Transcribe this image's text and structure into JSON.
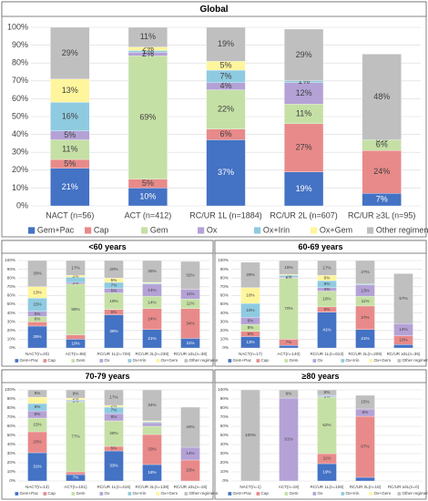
{
  "chart_data": [
    {
      "type": "bar",
      "stacked": true,
      "title": "Global",
      "categories": [
        "NACT (n=56)",
        "ACT (n=412)",
        "RC/UR 1L (n=1884)",
        "RC/UR 2L (n=607)",
        "RC/UR ≥3L (n=95)"
      ],
      "series": [
        {
          "name": "Gem+Pac",
          "color": "#4472c4",
          "values": [
            21,
            10,
            37,
            19,
            7
          ],
          "value_labels": [
            "21%",
            "10%",
            "37%",
            "19%",
            "7%"
          ]
        },
        {
          "name": "Cap",
          "color": "#e88a8a",
          "values": [
            5,
            5,
            6,
            27,
            24
          ],
          "value_labels": [
            "5%",
            "5%",
            "6%",
            "27%",
            "24%"
          ]
        },
        {
          "name": "Gem",
          "color": "#c5e0a5",
          "values": [
            11,
            69,
            22,
            11,
            6
          ],
          "value_labels": [
            "11%",
            "69%",
            "22%",
            "11%",
            "6%"
          ]
        },
        {
          "name": "Ox",
          "color": "#b4a2d6",
          "values": [
            5,
            2,
            4,
            12,
            0
          ],
          "value_labels": [
            "5%",
            "2%",
            "4%",
            "12%",
            "0%"
          ]
        },
        {
          "name": "Ox+Irin",
          "color": "#8fcbe0",
          "values": [
            16,
            1,
            7,
            1,
            0
          ],
          "value_labels": [
            "16%",
            "1%",
            "7%",
            "1%",
            null
          ]
        },
        {
          "name": "Ox+Gem",
          "color": "#fff59d",
          "values": [
            13,
            2,
            5,
            0,
            0
          ],
          "value_labels": [
            "13%",
            "2%",
            "5%",
            null,
            null
          ]
        },
        {
          "name": "Other regimens",
          "color": "#bfbfbf",
          "values": [
            29,
            11,
            19,
            29,
            48
          ],
          "value_labels": [
            "29%",
            "11%",
            "19%",
            "29%",
            "48%"
          ]
        }
      ],
      "ylim": [
        0,
        100
      ],
      "yticks": [
        {
          "value": 0,
          "label": "0%"
        },
        {
          "value": 10,
          "label": "10%"
        },
        {
          "value": 20,
          "label": "20%"
        },
        {
          "value": 30,
          "label": "30%"
        },
        {
          "value": 40,
          "label": "40%"
        },
        {
          "value": 50,
          "label": "50%"
        },
        {
          "value": 60,
          "label": "60%"
        },
        {
          "value": 70,
          "label": "70%"
        },
        {
          "value": 80,
          "label": "80%"
        },
        {
          "value": 90,
          "label": "90%"
        },
        {
          "value": 100,
          "label": "100%"
        }
      ],
      "grid": true,
      "legend": "bottom"
    },
    {
      "type": "bar",
      "stacked": true,
      "title": "<60 years",
      "categories": [
        "NACT(n=20)",
        "ACT(n=98)",
        "RC/UR 1L(n=726)",
        "RC/UR 2L(n=238)",
        "RC/UR ≥3L(n=38)"
      ],
      "series": [
        {
          "name": "Gem+Pac",
          "color": "#4472c4",
          "values": [
            25,
            10,
            38,
            21,
            11
          ],
          "value_labels": [
            "25%",
            "10%",
            "38%",
            "21%",
            "11%"
          ]
        },
        {
          "name": "Cap",
          "color": "#e88a8a",
          "values": [
            5,
            5,
            6,
            24,
            34
          ],
          "value_labels": [
            null,
            null,
            "6%",
            "24%",
            "34%"
          ]
        },
        {
          "name": "Gem",
          "color": "#c5e0a5",
          "values": [
            6,
            58,
            19,
            14,
            11
          ],
          "value_labels": [
            "6%",
            "58%",
            "19%",
            "14%",
            "11%"
          ]
        },
        {
          "name": "Ox",
          "color": "#b4a2d6",
          "values": [
            6,
            2,
            5,
            14,
            11
          ],
          "value_labels": [
            "6%",
            "2%",
            "5%",
            "14%",
            "11%"
          ]
        },
        {
          "name": "Ox+Irin",
          "color": "#8fcbe0",
          "values": [
            15,
            6,
            7,
            1,
            0
          ],
          "value_labels": [
            "15%",
            null,
            "7%",
            null,
            null
          ]
        },
        {
          "name": "Ox+Gem",
          "color": "#fff59d",
          "values": [
            13,
            2,
            5,
            1,
            0
          ],
          "value_labels": [
            "13%",
            "2%",
            "5%",
            null,
            null
          ]
        },
        {
          "name": "Other regimens",
          "color": "#bfbfbf",
          "values": [
            30,
            17,
            20,
            25,
            32
          ],
          "value_labels": [
            "30%",
            "17%",
            "20%",
            "25%",
            "32%"
          ]
        }
      ],
      "ylim": [
        0,
        100
      ],
      "yticks": [
        {
          "value": 0,
          "label": "0%"
        },
        {
          "value": 10,
          "label": "10%"
        },
        {
          "value": 20,
          "label": "20%"
        },
        {
          "value": 30,
          "label": "30%"
        },
        {
          "value": 40,
          "label": "40%"
        },
        {
          "value": 50,
          "label": "50%"
        },
        {
          "value": 60,
          "label": "60%"
        },
        {
          "value": 70,
          "label": "70%"
        },
        {
          "value": 80,
          "label": "80%"
        },
        {
          "value": 90,
          "label": "90%"
        },
        {
          "value": 100,
          "label": "100%"
        }
      ],
      "grid": true,
      "legend": "bottom"
    },
    {
      "type": "bar",
      "stacked": true,
      "title": "60-69 years",
      "categories": [
        "NACT(n=17)",
        "ACT(n=140)",
        "RC/UR 1L(n=613)",
        "RC/UR 2L(n=209)",
        "RC/UR ≥3L(n=35)"
      ],
      "series": [
        {
          "name": "Gem+Pac",
          "color": "#4472c4",
          "values": [
            13,
            3,
            41,
            21,
            4
          ],
          "value_labels": [
            "13%",
            null,
            "41%",
            "21%",
            null
          ]
        },
        {
          "name": "Cap",
          "color": "#e88a8a",
          "values": [
            6,
            7,
            6,
            27,
            10
          ],
          "value_labels": [
            "6%",
            "7%",
            "6%",
            "27%",
            "10%"
          ]
        },
        {
          "name": "Gem",
          "color": "#c5e0a5",
          "values": [
            8,
            70,
            18,
            11,
            0
          ],
          "value_labels": [
            "8%",
            "70%",
            "18%",
            "11%",
            null
          ]
        },
        {
          "name": "Ox",
          "color": "#b4a2d6",
          "values": [
            8,
            1,
            4,
            13,
            14
          ],
          "value_labels": [
            "8%",
            "1%",
            "4%",
            "13%",
            "14%"
          ]
        },
        {
          "name": "Ox+Irin",
          "color": "#8fcbe0",
          "values": [
            16,
            2,
            8,
            1,
            0
          ],
          "value_labels": [
            "16%",
            "2%",
            "8%",
            null,
            null
          ]
        },
        {
          "name": "Ox+Gem",
          "color": "#fff59d",
          "values": [
            18,
            1,
            6,
            0,
            0
          ],
          "value_labels": [
            "18%",
            null,
            "6%",
            null,
            null
          ]
        },
        {
          "name": "Other regimens",
          "color": "#bfbfbf",
          "values": [
            29,
            16,
            17,
            27,
            57
          ],
          "value_labels": [
            "29%",
            "16%",
            "17%",
            "27%",
            "57%"
          ]
        }
      ],
      "ylim": [
        0,
        100
      ],
      "yticks": [
        {
          "value": 0,
          "label": "0%"
        },
        {
          "value": 10,
          "label": "10%"
        },
        {
          "value": 20,
          "label": "20%"
        },
        {
          "value": 30,
          "label": "30%"
        },
        {
          "value": 40,
          "label": "40%"
        },
        {
          "value": 50,
          "label": "50%"
        },
        {
          "value": 60,
          "label": "60%"
        },
        {
          "value": 70,
          "label": "70%"
        },
        {
          "value": 80,
          "label": "80%"
        },
        {
          "value": 90,
          "label": "90%"
        },
        {
          "value": 100,
          "label": "100%"
        }
      ],
      "grid": true,
      "legend": "bottom"
    },
    {
      "type": "bar",
      "stacked": true,
      "title": "70-79 years",
      "categories": [
        "NACT(n=13)",
        "ACT(n=151)",
        "RC/UR 1L(n=416)",
        "RC/UR 2L(n=138)",
        "RC/UR ≥3L(n=18)"
      ],
      "series": [
        {
          "name": "Gem+Pac",
          "color": "#4472c4",
          "values": [
            31,
            7,
            33,
            18,
            0
          ],
          "value_labels": [
            "31%",
            "7%",
            "33%",
            "18%",
            null
          ]
        },
        {
          "name": "Cap",
          "color": "#e88a8a",
          "values": [
            23,
            3,
            5,
            33,
            23
          ],
          "value_labels": [
            "23%",
            null,
            "5%",
            "33%",
            "23%"
          ]
        },
        {
          "name": "Gem",
          "color": "#c5e0a5",
          "values": [
            15,
            77,
            28,
            9,
            0
          ],
          "value_labels": [
            "15%",
            "77%",
            "28%",
            null,
            null
          ]
        },
        {
          "name": "Ox",
          "color": "#b4a2d6",
          "values": [
            8,
            1,
            8,
            4,
            14
          ],
          "value_labels": [
            "8%",
            "1%",
            "8%",
            null,
            "14%"
          ]
        },
        {
          "name": "Ox+Irin",
          "color": "#8fcbe0",
          "values": [
            8,
            1,
            7,
            1,
            0
          ],
          "value_labels": [
            "8%",
            null,
            "7%",
            null,
            null
          ]
        },
        {
          "name": "Ox+Gem",
          "color": "#fff59d",
          "values": [
            7,
            2,
            2,
            1,
            0
          ],
          "value_labels": [
            null,
            "2%",
            "2%",
            null,
            null
          ]
        },
        {
          "name": "Other regimens",
          "color": "#bfbfbf",
          "values": [
            8,
            9,
            17,
            34,
            44
          ],
          "value_labels": [
            "8%",
            "9%",
            "17%",
            "34%",
            "44%"
          ]
        }
      ],
      "ylim": [
        0,
        100
      ],
      "yticks": [
        {
          "value": 0,
          "label": "0%"
        },
        {
          "value": 10,
          "label": "10%"
        },
        {
          "value": 20,
          "label": "20%"
        },
        {
          "value": 30,
          "label": "30%"
        },
        {
          "value": 40,
          "label": "40%"
        },
        {
          "value": 50,
          "label": "50%"
        },
        {
          "value": 60,
          "label": "60%"
        },
        {
          "value": 70,
          "label": "70%"
        },
        {
          "value": 80,
          "label": "80%"
        },
        {
          "value": 90,
          "label": "90%"
        },
        {
          "value": 100,
          "label": "100%"
        }
      ],
      "grid": true,
      "legend": "bottom"
    },
    {
      "type": "bar",
      "stacked": true,
      "title": "≥80 years",
      "categories": [
        "NACT(n=1)",
        "ACT(n=18)",
        "RC/UR 1L(n=106)",
        "RC/UR 2L(n=18)",
        "RC/UR ≥3L(n=0)"
      ],
      "series": [
        {
          "name": "Gem+Pac",
          "color": "#4472c4",
          "values": [
            0,
            0,
            19,
            4,
            0
          ],
          "value_labels": [
            null,
            null,
            "19%",
            null,
            null
          ]
        },
        {
          "name": "Cap",
          "color": "#e88a8a",
          "values": [
            0,
            0,
            11,
            67,
            0
          ],
          "value_labels": [
            null,
            null,
            "11%",
            "67%",
            null
          ]
        },
        {
          "name": "Gem",
          "color": "#c5e0a5",
          "values": [
            0,
            0,
            62,
            0,
            0
          ],
          "value_labels": [
            null,
            null,
            "62%",
            null,
            null
          ]
        },
        {
          "name": "Ox",
          "color": "#b4a2d6",
          "values": [
            0,
            91,
            1,
            8,
            0
          ],
          "value_labels": [
            null,
            "91%",
            "1%",
            "8%",
            null
          ]
        },
        {
          "name": "Ox+Irin",
          "color": "#8fcbe0",
          "values": [
            0,
            0,
            1,
            0,
            0
          ],
          "value_labels": [
            null,
            null,
            null,
            null,
            null
          ]
        },
        {
          "name": "Ox+Gem",
          "color": "#fff59d",
          "values": [
            0,
            0,
            0,
            0,
            0
          ],
          "value_labels": [
            null,
            null,
            null,
            null,
            null
          ]
        },
        {
          "name": "Other regimens",
          "color": "#bfbfbf",
          "values": [
            100,
            9,
            6,
            15,
            0
          ],
          "value_labels": [
            "100%",
            "9%",
            "6%",
            "15%",
            null
          ]
        }
      ],
      "ylim": [
        0,
        100
      ],
      "yticks": [
        {
          "value": 0,
          "label": "0%"
        },
        {
          "value": 10,
          "label": "10%"
        },
        {
          "value": 20,
          "label": "20%"
        },
        {
          "value": 30,
          "label": "30%"
        },
        {
          "value": 40,
          "label": "40%"
        },
        {
          "value": 50,
          "label": "50%"
        },
        {
          "value": 60,
          "label": "60%"
        },
        {
          "value": 70,
          "label": "70%"
        },
        {
          "value": 80,
          "label": "80%"
        },
        {
          "value": 90,
          "label": "90%"
        },
        {
          "value": 100,
          "label": "100%"
        }
      ],
      "grid": true,
      "legend": "bottom"
    }
  ]
}
